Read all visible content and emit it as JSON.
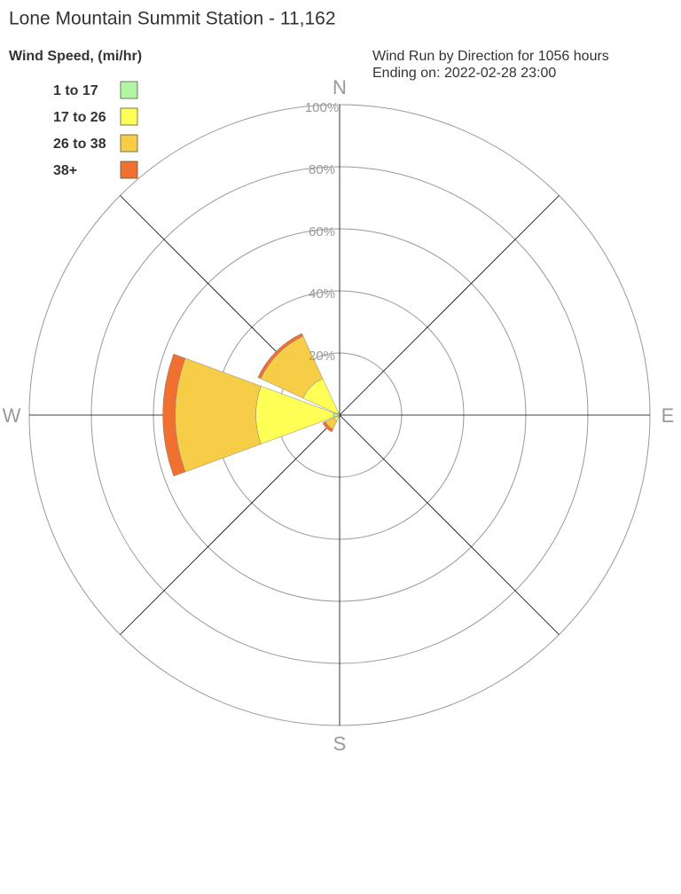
{
  "chart_data": {
    "type": "wind-rose",
    "title": "Lone Mountain Summit Station - 11,162",
    "legend_title": "Wind Speed, (mi/hr)",
    "subtitle": [
      "Wind Run by Direction for 1056 hours",
      "Ending on: 2022-02-28 23:00"
    ],
    "categories": [
      "N",
      null,
      "E",
      null,
      "S",
      null,
      "W",
      null
    ],
    "series": [
      {
        "name": "1 to 17",
        "color": "#b3f5a3",
        "values": [
          0,
          0,
          0,
          0,
          0,
          1,
          2,
          1
        ]
      },
      {
        "name": "17 to 26",
        "color": "#ffff55",
        "values": [
          0,
          0,
          0,
          0,
          0,
          1,
          25,
          12
        ]
      },
      {
        "name": "26 to 38",
        "color": "#f7cc47",
        "values": [
          0,
          0,
          0,
          0,
          0,
          3,
          26,
          15
        ]
      },
      {
        "name": "38+",
        "color": "#f07030",
        "values": [
          0,
          0,
          0,
          0,
          0,
          1,
          4,
          1
        ]
      }
    ],
    "rlim": [
      0,
      100
    ],
    "rticks": [
      {
        "value": 20,
        "label": "20%"
      },
      {
        "value": 40,
        "label": "40%"
      },
      {
        "value": 60,
        "label": "60%"
      },
      {
        "value": 80,
        "label": "80%"
      },
      {
        "value": 100,
        "label": "100%"
      }
    ]
  }
}
